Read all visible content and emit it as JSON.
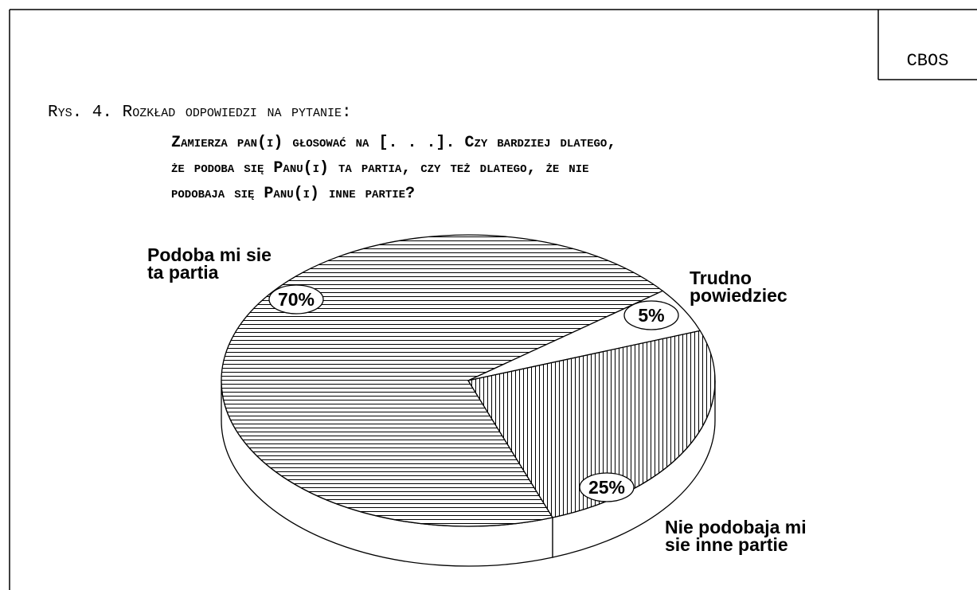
{
  "chart_data": {
    "type": "pie3d",
    "annotation": "CBOS",
    "title": "Rys. 4. Rozkład odpowiedzi na pytanie:",
    "subtitle": [
      "Zamierza pan(i) głosować na [. . .]. Czy bardziej dlatego,",
      "że podoba się Panu(i) ta partia, czy też dlatego, że nie",
      "podobaja się Panu(i) inne partie?"
    ],
    "categories": [
      [
        "Podoba mi sie",
        "ta partia"
      ],
      [
        "Trudno",
        "powiedziec"
      ],
      [
        "Nie podobaja mi",
        "sie inne partie"
      ]
    ],
    "values": [
      70,
      5,
      25
    ],
    "value_labels": [
      "70%",
      "5%",
      "25%"
    ],
    "hatch": [
      "horizontal",
      "none",
      "vertical"
    ]
  }
}
